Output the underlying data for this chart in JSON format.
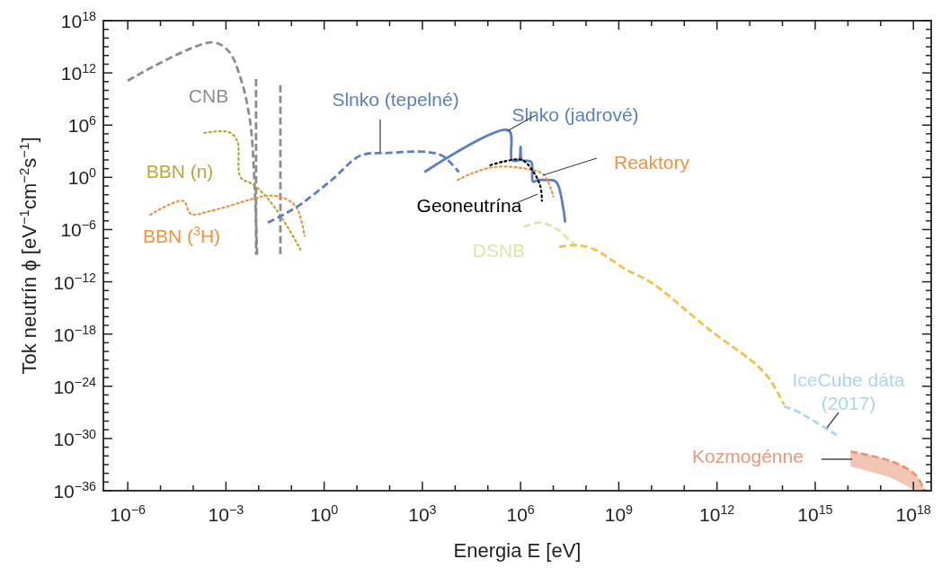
{
  "chart_data": {
    "type": "line",
    "log": "xy",
    "xlabel": "Energia E [eV]",
    "ylabel": "Tok neutrín ϕ [eV$^{−1}$cm$^{−2}$s$^{−1}$]",
    "xlim": [
      1.8e-07,
      3.5e+18
    ],
    "ylim": [
      1e-36,
      1e+18
    ],
    "xticks": [
      {
        "value": 1e-06,
        "label": "10$^{−6}$"
      },
      {
        "value": 1e-05,
        "label": null
      },
      {
        "value": 0.0001,
        "label": null
      },
      {
        "value": 0.001,
        "label": "10$^{−3}$"
      },
      {
        "value": 0.01,
        "label": null
      },
      {
        "value": 0.1,
        "label": null
      },
      {
        "value": 1,
        "label": "10$^{0}$"
      },
      {
        "value": 10,
        "label": null
      },
      {
        "value": 100,
        "label": null
      },
      {
        "value": 1000.0,
        "label": "10$^{3}$"
      },
      {
        "value": 10000.0,
        "label": null
      },
      {
        "value": 100000.0,
        "label": null
      },
      {
        "value": 1000000.0,
        "label": "10$^{6}$"
      },
      {
        "value": 10000000.0,
        "label": null
      },
      {
        "value": 100000000.0,
        "label": null
      },
      {
        "value": 1000000000.0,
        "label": "10$^{9}$"
      },
      {
        "value": 10000000000.0,
        "label": null
      },
      {
        "value": 100000000000.0,
        "label": null
      },
      {
        "value": 1000000000000.0,
        "label": "10$^{12}$"
      },
      {
        "value": 10000000000000.0,
        "label": null
      },
      {
        "value": 100000000000000.0,
        "label": null
      },
      {
        "value": 1000000000000000.0,
        "label": "10$^{15}$"
      },
      {
        "value": 1e+16,
        "label": null
      },
      {
        "value": 1e+17,
        "label": null
      },
      {
        "value": 1e+18,
        "label": "10$^{18}$"
      }
    ],
    "yticks": [
      {
        "value": 1e-36,
        "label": "10$^{−36}$"
      },
      {
        "value": 1e-35,
        "label": null
      },
      {
        "value": 1e-34,
        "label": null
      },
      {
        "value": 1e-33,
        "label": null
      },
      {
        "value": 1e-32,
        "label": null
      },
      {
        "value": 1e-31,
        "label": null
      },
      {
        "value": 1e-30,
        "label": "10$^{−30}$"
      },
      {
        "value": 1e-29,
        "label": null
      },
      {
        "value": 1e-28,
        "label": null
      },
      {
        "value": 1e-27,
        "label": null
      },
      {
        "value": 1e-26,
        "label": null
      },
      {
        "value": 1e-25,
        "label": null
      },
      {
        "value": 1e-24,
        "label": "10$^{−24}$"
      },
      {
        "value": 1e-23,
        "label": null
      },
      {
        "value": 1e-22,
        "label": null
      },
      {
        "value": 1e-21,
        "label": null
      },
      {
        "value": 1e-20,
        "label": null
      },
      {
        "value": 1e-19,
        "label": null
      },
      {
        "value": 1e-18,
        "label": "10$^{−18}$"
      },
      {
        "value": 1e-17,
        "label": null
      },
      {
        "value": 1e-16,
        "label": null
      },
      {
        "value": 1e-15,
        "label": null
      },
      {
        "value": 1e-14,
        "label": null
      },
      {
        "value": 1e-13,
        "label": null
      },
      {
        "value": 1e-12,
        "label": "10$^{−12}$"
      },
      {
        "value": 1e-11,
        "label": null
      },
      {
        "value": 1e-10,
        "label": null
      },
      {
        "value": 1e-09,
        "label": null
      },
      {
        "value": 1e-08,
        "label": null
      },
      {
        "value": 1e-07,
        "label": null
      },
      {
        "value": 1e-06,
        "label": "10$^{−6}$"
      },
      {
        "value": 1e-05,
        "label": null
      },
      {
        "value": 0.0001,
        "label": null
      },
      {
        "value": 0.001,
        "label": null
      },
      {
        "value": 0.01,
        "label": null
      },
      {
        "value": 0.1,
        "label": null
      },
      {
        "value": 1,
        "label": "10$^{0}$"
      },
      {
        "value": 10,
        "label": null
      },
      {
        "value": 100,
        "label": null
      },
      {
        "value": 1000.0,
        "label": null
      },
      {
        "value": 10000.0,
        "label": null
      },
      {
        "value": 100000.0,
        "label": null
      },
      {
        "value": 1000000.0,
        "label": "10$^{6}$"
      },
      {
        "value": 10000000.0,
        "label": null
      },
      {
        "value": 100000000.0,
        "label": null
      },
      {
        "value": 1000000000.0,
        "label": null
      },
      {
        "value": 10000000000.0,
        "label": null
      },
      {
        "value": 100000000000.0,
        "label": null
      },
      {
        "value": 1000000000000.0,
        "label": "10$^{12}$"
      },
      {
        "value": 10000000000000.0,
        "label": null
      },
      {
        "value": 100000000000000.0,
        "label": null
      },
      {
        "value": 1000000000000000.0,
        "label": null
      },
      {
        "value": 1e+16,
        "label": null
      },
      {
        "value": 1e+17,
        "label": null
      },
      {
        "value": 1e+18,
        "label": "10$^{18}$"
      }
    ],
    "series": [
      {
        "name": "CNB",
        "color": "#8c8c8c",
        "line_style": "dashed",
        "x": [
          1e-06,
          0.00037,
          0.0012,
          0.0028,
          0.0054,
          0.0074,
          0.0089
        ],
        "values": [
          130000000000.0,
          3200000000000000.0,
          320000000000000.0,
          250000000000.0,
          4000000.0,
          0.5,
          1.3e-09
        ]
      },
      {
        "color": "#8c8c8c",
        "line_style": "dashed",
        "x": [
          0.0083,
          0.0083
        ],
        "values": [
          200000000000.0,
          1.3e-09
        ]
      },
      {
        "color": "#8c8c8c",
        "line_style": "dashed",
        "x": [
          0.046,
          0.046
        ],
        "values": [
          40000000000.0,
          1.3e-09
        ]
      },
      {
        "name": "BBN (n)",
        "color": "#b8a83a",
        "line_style": "dotted",
        "x": [
          0.00022,
          0.0012,
          0.0022,
          0.0028,
          0.0065,
          0.015,
          0.052,
          0.19
        ],
        "values": [
          130000.0,
          160000.0,
          16000.0,
          1,
          0.16,
          0.01,
          2e-05,
          5e-09
        ]
      },
      {
        "name": "BBN ($^{3}$H)",
        "color": "#f5913c",
        "line_style": "dotted",
        "x": [
          4.9e-06,
          4.9e-05,
          8.5e-05,
          0.00032,
          0.0079,
          0.019,
          0.052,
          0.14,
          0.25
        ],
        "values": [
          5e-05,
          0.002,
          6.3e-05,
          0.00013,
          0.004,
          0.0079,
          0.005,
          0.0004,
          2e-07
        ]
      },
      {
        "name": "Slnko (tepelné)",
        "color": "#5b7fc4",
        "line_style": "dashed",
        "x": [
          0.019,
          0.05,
          0.19,
          1.7,
          13,
          85,
          1500,
          4400,
          13000
        ],
        "values": [
          6.3e-06,
          4e-05,
          0.0008,
          0.5,
          320,
          630,
          800,
          250,
          4
        ]
      },
      {
        "name": "Slnko (jadrové)",
        "color": "#5b7fc4",
        "line_style": "solid",
        "x": [
          1150,
          430000.0,
          550000.0,
          890000.0,
          1000000.0,
          1100000.0,
          2100000.0,
          2400000.0,
          3500000.0,
          5200000.0,
          12000000.0,
          20000000.0,
          23000000.0
        ],
        "values": [
          4,
          250000.0,
          100,
          100,
          3200,
          100,
          63,
          0.32,
          0.5,
          0.5,
          0.32,
          0.00032,
          6.3e-06
        ]
      },
      {
        "name": "Reaktory",
        "color": "#f5913c",
        "line_style": "dotted",
        "x": [
          12000.0,
          35000.0,
          170000.0,
          1400000.0,
          5100000.0,
          10000000.0
        ],
        "values": [
          0.5,
          3.2,
          16,
          10,
          2,
          0.0063
        ]
      },
      {
        "name": "Geoneutrína",
        "color": "#000000",
        "line_style": "dotted",
        "x": [
          120000.0,
          290000.0,
          1100000.0,
          2400000.0,
          4000000.0,
          4500000.0
        ],
        "values": [
          25,
          63,
          100,
          5,
          0.1,
          0.002
        ]
      },
      {
        "name": "DSNB",
        "color": "#d9e8a8",
        "line_style": "dashed",
        "x": [
          1260000.0,
          4000000.0,
          12000000.0,
          45000000.0
        ],
        "values": [
          2e-06,
          6.3e-06,
          1.3e-06,
          1.6e-08
        ]
      },
      {
        "color": "#f5c04a",
        "line_style": "dashed",
        "x": [
          15000000.0,
          45000000.0,
          160000000.0,
          1700000000.0,
          10000000000.0,
          540000000000.0,
          29000000000000.0,
          110000000000000.0
        ],
        "values": [
          1e-08,
          1.6e-08,
          6.3e-09,
          2.5e-11,
          7.9e-13,
          4e-18,
          3.2e-23,
          7.9e-27
        ]
      },
      {
        "name": "IceCube dáta (2017)",
        "color": "#a8d8f0",
        "line_style": "dashed",
        "x": [
          110000000000000.0,
          250000000000000.0,
          4500000000000000.0
        ],
        "values": [
          5e-27,
          1.6e-27,
          2.5e-30
        ]
      },
      {
        "name": "Kozmogénne",
        "color": "#e8987a",
        "line_style": "dashed",
        "x": [
          1.2e+16,
          2e+17,
          1.1e+18,
          2.2e+18
        ],
        "values": [
          3.2e-32,
          2.5e-33,
          7.9e-35,
          1e-36
        ],
        "lower": [
          6.3e-34,
          3.2e-35,
          1.3e-36,
          1e-36
        ],
        "upper": [
          3.2e-32,
          2.5e-33,
          7.9e-35,
          1e-36
        ]
      }
    ]
  }
}
